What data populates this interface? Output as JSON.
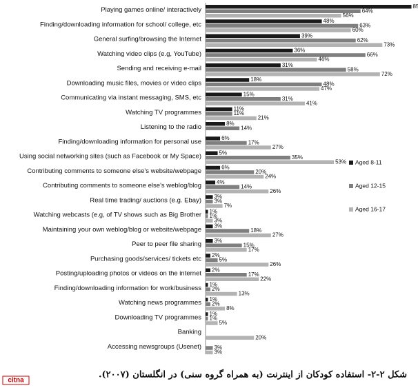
{
  "chart_data": {
    "type": "hbar",
    "caption": "شکل ۲-۲- استفاده کودکان از اینترنت (به همراه گروه سنی) در انگلستان (۲۰۰۷).",
    "categories": [
      "Playing games online/ interactively",
      "Finding/downloading information for school/ college, etc",
      "General surfing/browsing the Internet",
      "Watching video clips (e.g, YouTube)",
      "Sending and receiving e-mail",
      "Downloading music files, movies or video clips",
      "Communicating via instant messaging, SMS, etc",
      "Watching TV programmes",
      "Listening to the radio",
      "Finding/downloading information for personal use",
      "Using social networking sites (such as Facebook or My Space)",
      "Contributing comments to someone else's website/webpage",
      "Contributing comments to someone else's weblog/blog",
      "Real time trading/ auctions (e.g. Ebay)",
      "Watching webcasts (e.g, of TV shows such as Big Brother",
      "Maintaining your own weblog/blog or website/webpage",
      "Peer to peer file sharing",
      "Purchasing goods/services/ tickets etc",
      "Posting/uploading photos or videos on the internet",
      "Finding/downloading information for work/business",
      "Watching news programmes",
      "Downloading TV programmes",
      "Banking",
      "Accessing newsgroups (Usenet)"
    ],
    "series": [
      {
        "name": "Aged 8-11",
        "color": "#1a1a1a",
        "values": [
          85,
          48,
          39,
          36,
          31,
          18,
          15,
          11,
          8,
          6,
          5,
          6,
          4,
          3,
          1,
          3,
          3,
          2,
          2,
          1,
          1,
          1,
          null,
          null
        ],
        "value_labels": [
          "85%",
          "48%",
          "39%",
          "36%",
          "31%",
          "18%",
          "15%",
          "11%",
          "8%",
          "6%",
          "5%",
          "6%",
          "4%",
          "3%",
          "1%",
          "3%",
          "3%",
          "2%",
          "2%",
          "1%",
          "1%",
          "1%",
          null,
          null
        ]
      },
      {
        "name": "Aged 12-15",
        "color": "#7f7f7f",
        "values": [
          64,
          63,
          62,
          66,
          58,
          48,
          31,
          11,
          14,
          17,
          35,
          20,
          14,
          3,
          1,
          18,
          15,
          5,
          17,
          2,
          2,
          1,
          null,
          3
        ],
        "value_labels": [
          "64%",
          "63%",
          "62%",
          "66%",
          "58%",
          "48%",
          "31%",
          "11%",
          "14%",
          "17%",
          "35%",
          "20%",
          "14%",
          "3%",
          "1%",
          "18%",
          "15%",
          "5%",
          "17%",
          "2%",
          "2%",
          "1%",
          null,
          "3%"
        ]
      },
      {
        "name": "Aged 16-17",
        "color": "#b3b3b3",
        "values": [
          56,
          60,
          73,
          46,
          72,
          47,
          41,
          21,
          null,
          27,
          53,
          24,
          26,
          7,
          3,
          27,
          17,
          26,
          22,
          13,
          8,
          5,
          20,
          3
        ],
        "value_labels": [
          "56%",
          "60%",
          "73%",
          "46%",
          "72%",
          "47%",
          "41%",
          "21%",
          null,
          "27%",
          "53%",
          "24%",
          "26%",
          "7%",
          "3%",
          "27%",
          "17%",
          "26%",
          "22%",
          "13%",
          "8%",
          "5%",
          "20%",
          "3%"
        ]
      }
    ],
    "xlim": [
      0,
      86
    ],
    "legend": "right"
  },
  "logo": "citna"
}
